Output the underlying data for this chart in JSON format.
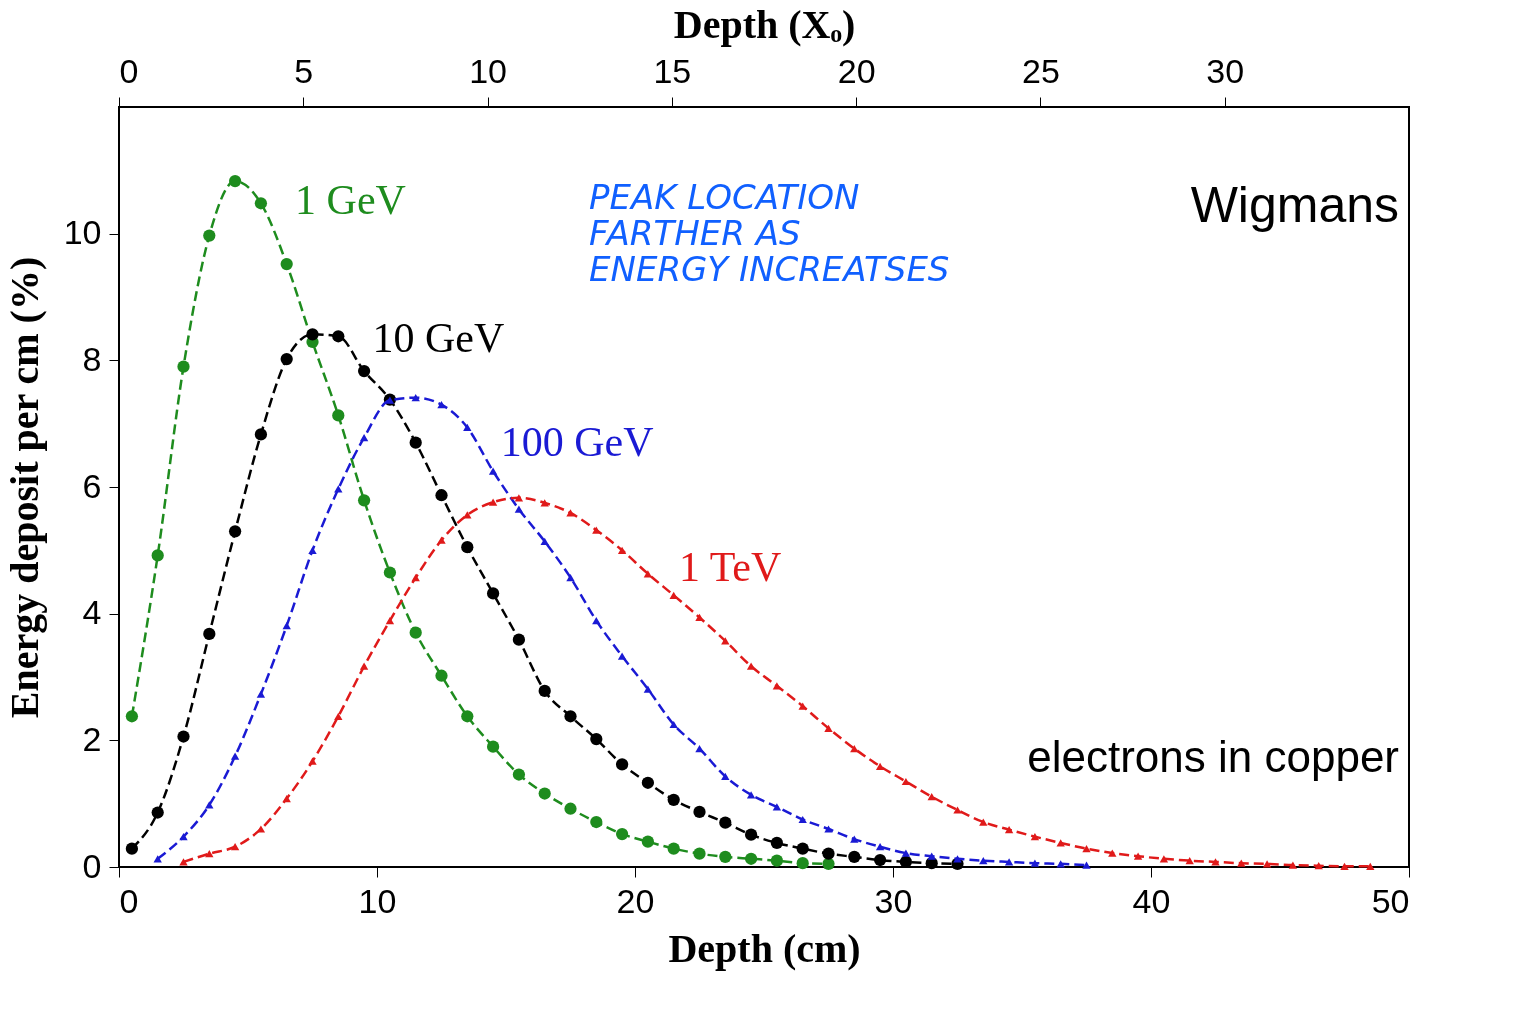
{
  "chart_data": {
    "type": "line",
    "xlabel": "Depth (cm)",
    "x2label": "Depth (Xₒ)",
    "ylabel": "Energy deposit per cm (%)",
    "xlim": [
      0,
      50
    ],
    "xticks": [
      0,
      10,
      20,
      30,
      40,
      50
    ],
    "x2lim": [
      0,
      35
    ],
    "x2ticks": [
      0,
      5,
      10,
      15,
      20,
      25,
      30
    ],
    "ylim": [
      0,
      12
    ],
    "yticks": [
      0,
      2,
      4,
      6,
      8,
      10
    ],
    "line_style": "dashed",
    "annotations": [
      "Wigmans",
      "electrons in copper",
      "PEAK LOCATION\nFARTHER AS\nENERGY INCREATSES"
    ],
    "series": [
      {
        "name": "1 GeV",
        "color": "#1e8c1e",
        "marker": "circle",
        "x": [
          0.5,
          1.5,
          2.5,
          3.5,
          4.5,
          5.5,
          6.5,
          7.5,
          8.5,
          9.5,
          10.5,
          11.5,
          12.5,
          13.5,
          14.5,
          15.5,
          16.5,
          17.5,
          18.5,
          19.5,
          20.5,
          21.5,
          22.5,
          23.5,
          24.5,
          25.5,
          26.5,
          27.5
        ],
        "values": [
          2.38,
          4.92,
          7.9,
          9.97,
          10.83,
          10.48,
          9.52,
          8.29,
          7.13,
          5.79,
          4.65,
          3.7,
          3.02,
          2.38,
          1.9,
          1.46,
          1.16,
          0.92,
          0.71,
          0.52,
          0.4,
          0.29,
          0.21,
          0.16,
          0.13,
          0.1,
          0.06,
          0.05
        ]
      },
      {
        "name": "10 GeV",
        "color": "#000000",
        "marker": "circle",
        "x": [
          0.5,
          1.5,
          2.5,
          3.5,
          4.5,
          5.5,
          6.5,
          7.5,
          8.5,
          9.5,
          10.5,
          11.5,
          12.5,
          13.5,
          14.5,
          15.5,
          16.5,
          17.5,
          18.5,
          19.5,
          20.5,
          21.5,
          22.5,
          23.5,
          24.5,
          25.5,
          26.5,
          27.5,
          28.5,
          29.5,
          30.5,
          31.5,
          32.5
        ],
        "values": [
          0.29,
          0.86,
          2.06,
          3.68,
          5.3,
          6.83,
          8.02,
          8.41,
          8.38,
          7.83,
          7.38,
          6.7,
          5.87,
          5.05,
          4.32,
          3.59,
          2.78,
          2.38,
          2.02,
          1.62,
          1.33,
          1.06,
          0.87,
          0.7,
          0.51,
          0.38,
          0.29,
          0.21,
          0.16,
          0.11,
          0.08,
          0.06,
          0.05
        ]
      },
      {
        "name": "100 GeV",
        "color": "#1a1ad4",
        "marker": "triangle",
        "x": [
          1.5,
          2.5,
          3.5,
          4.5,
          5.5,
          6.5,
          7.5,
          8.5,
          9.5,
          10.5,
          11.5,
          12.5,
          13.5,
          14.5,
          15.5,
          16.5,
          17.5,
          18.5,
          19.5,
          20.5,
          21.5,
          22.5,
          23.5,
          24.5,
          25.5,
          26.5,
          27.5,
          28.5,
          29.5,
          30.5,
          31.5,
          32.5,
          33.5,
          34.5,
          35.5,
          36.5,
          37.5
        ],
        "values": [
          0.13,
          0.48,
          0.98,
          1.75,
          2.73,
          3.81,
          5.0,
          5.97,
          6.78,
          7.37,
          7.41,
          7.3,
          6.94,
          6.25,
          5.65,
          5.14,
          4.57,
          3.89,
          3.33,
          2.81,
          2.25,
          1.87,
          1.43,
          1.14,
          0.95,
          0.75,
          0.6,
          0.44,
          0.32,
          0.22,
          0.17,
          0.13,
          0.1,
          0.08,
          0.06,
          0.05,
          0.03
        ]
      },
      {
        "name": "1 TeV",
        "color": "#e01a1a",
        "marker": "triangle",
        "x": [
          2.5,
          3.5,
          4.5,
          5.5,
          6.5,
          7.5,
          8.5,
          9.5,
          10.5,
          11.5,
          12.5,
          13.5,
          14.5,
          15.5,
          16.5,
          17.5,
          18.5,
          19.5,
          20.5,
          21.5,
          22.5,
          23.5,
          24.5,
          25.5,
          26.5,
          27.5,
          28.5,
          29.5,
          30.5,
          31.5,
          32.5,
          33.5,
          34.5,
          35.5,
          36.5,
          37.5,
          38.5,
          39.5,
          40.5,
          41.5,
          42.5,
          43.5,
          44.5,
          45.5,
          46.5,
          47.5,
          48.5
        ],
        "values": [
          0.08,
          0.21,
          0.32,
          0.6,
          1.08,
          1.67,
          2.38,
          3.17,
          3.89,
          4.57,
          5.16,
          5.56,
          5.76,
          5.83,
          5.75,
          5.59,
          5.32,
          5.0,
          4.63,
          4.29,
          3.94,
          3.57,
          3.17,
          2.86,
          2.54,
          2.19,
          1.87,
          1.59,
          1.35,
          1.11,
          0.9,
          0.71,
          0.59,
          0.48,
          0.38,
          0.29,
          0.22,
          0.17,
          0.13,
          0.1,
          0.08,
          0.06,
          0.05,
          0.03,
          0.02,
          0.01,
          0.01
        ]
      }
    ]
  }
}
